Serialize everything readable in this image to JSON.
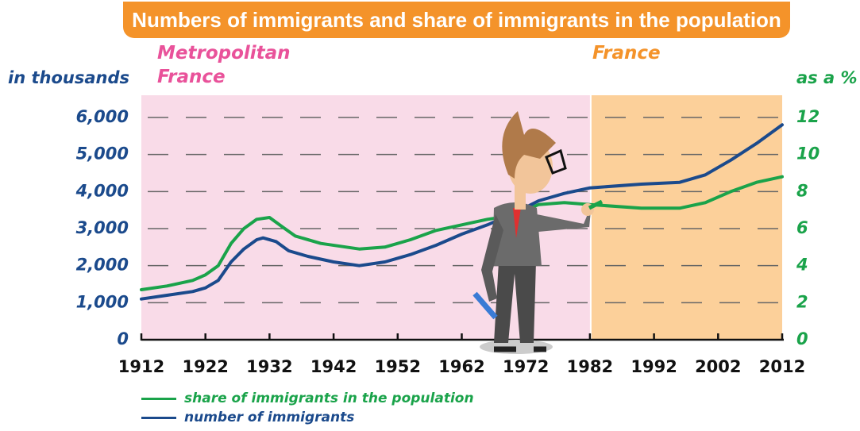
{
  "chart_data": {
    "type": "line",
    "title": "Numbers of immigrants and share of immigrants in the population",
    "ylabel": "in thousands",
    "y2label": "as a %",
    "regions": [
      {
        "label": "Metropolitan France",
        "start": 1912,
        "end": 1982,
        "color": "#f9dbe8",
        "label_color": "#e9529a"
      },
      {
        "label": "France",
        "start": 1982,
        "end": 2012,
        "color": "#fcd09a",
        "label_color": "#f4932a"
      }
    ],
    "xlim": [
      1912,
      2012
    ],
    "xticks": [
      1912,
      1922,
      1932,
      1942,
      1952,
      1962,
      1972,
      1982,
      1992,
      2002,
      2012
    ],
    "ylim": [
      0,
      6600
    ],
    "yticks": [
      0,
      {
        "value": 1000,
        "label": "1,000"
      },
      {
        "value": 2000,
        "label": "2,000"
      },
      {
        "value": 3000,
        "label": "3,000"
      },
      {
        "value": 4000,
        "label": "4,000"
      },
      {
        "value": 5000,
        "label": "5,000"
      },
      {
        "value": 6000,
        "label": "6,000"
      }
    ],
    "y2lim": [
      0,
      13.2
    ],
    "y2ticks": [
      0,
      2,
      4,
      6,
      8,
      10,
      12
    ],
    "grid": true,
    "series": [
      {
        "name": "share of immigrants in the population",
        "color": "#1aa34a",
        "axis": "y2",
        "x": [
          1912,
          1916,
          1920,
          1922,
          1924,
          1926,
          1928,
          1930,
          1932,
          1934,
          1936,
          1940,
          1946,
          1950,
          1954,
          1958,
          1962,
          1966,
          1970,
          1974,
          1978,
          1982,
          1990,
          1996,
          2000,
          2004,
          2008,
          2012
        ],
        "values": [
          2.7,
          2.9,
          3.2,
          3.5,
          4.0,
          5.2,
          6.0,
          6.5,
          6.6,
          6.1,
          5.6,
          5.2,
          4.9,
          5.0,
          5.4,
          5.9,
          6.2,
          6.5,
          6.7,
          7.3,
          7.4,
          7.3,
          7.1,
          7.1,
          7.4,
          8.0,
          8.5,
          8.8
        ]
      },
      {
        "name": "number of immigrants",
        "color": "#1b4a8c",
        "x": [
          1912,
          1916,
          1920,
          1922,
          1924,
          1926,
          1928,
          1930,
          1931,
          1933,
          1935,
          1938,
          1942,
          1946,
          1950,
          1954,
          1958,
          1962,
          1966,
          1970,
          1974,
          1978,
          1982,
          1990,
          1996,
          2000,
          2004,
          2008,
          2012
        ],
        "values": [
          1100,
          1200,
          1300,
          1400,
          1600,
          2100,
          2450,
          2700,
          2750,
          2650,
          2400,
          2250,
          2100,
          2000,
          2100,
          2300,
          2550,
          2850,
          3100,
          3400,
          3750,
          3950,
          4100,
          4200,
          4250,
          4450,
          4850,
          5300,
          5800
        ]
      }
    ]
  }
}
